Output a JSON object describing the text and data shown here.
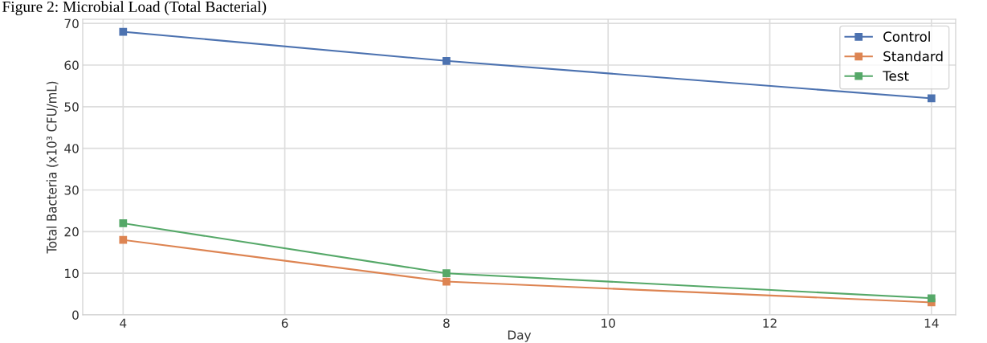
{
  "chart_data": {
    "type": "line",
    "title": "Figure 2: Microbial Load (Total Bacterial)",
    "xlabel": "Day",
    "ylabel": "Total Bacteria (x10³ CFU/mL)",
    "x": [
      4,
      8,
      14
    ],
    "series": [
      {
        "name": "Control",
        "color": "#4c72b0",
        "values": [
          68,
          61,
          52
        ]
      },
      {
        "name": "Standard",
        "color": "#dd8452",
        "values": [
          18,
          8,
          3
        ]
      },
      {
        "name": "Test",
        "color": "#55a868",
        "values": [
          22,
          10,
          4
        ]
      }
    ],
    "xlim": [
      3.5,
      14.3
    ],
    "ylim": [
      0,
      71
    ],
    "xticks": [
      4,
      6,
      8,
      10,
      12,
      14
    ],
    "yticks": [
      0,
      10,
      20,
      30,
      40,
      50,
      60,
      70
    ],
    "grid": true,
    "legend": "top right",
    "marker": "square",
    "line_style": "solid"
  }
}
